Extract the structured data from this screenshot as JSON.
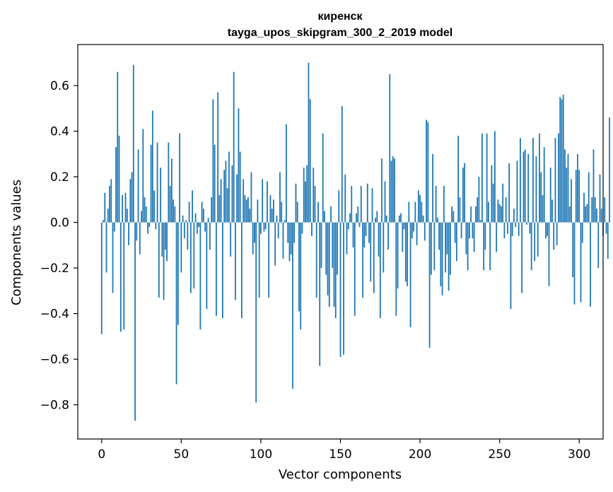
{
  "chart_data": {
    "type": "bar",
    "title_line1": "киренск",
    "title_line2": "tayga_upos_skipgram_300_2_2019 model",
    "xlabel": "Vector components",
    "ylabel": "Components values",
    "xlim": [
      -15,
      315
    ],
    "ylim": [
      -0.95,
      0.78
    ],
    "xticks": [
      0,
      50,
      100,
      150,
      200,
      250,
      300
    ],
    "xtick_labels": [
      "0",
      "50",
      "100",
      "150",
      "200",
      "250",
      "300"
    ],
    "yticks": [
      -0.8,
      -0.6,
      -0.4,
      -0.2,
      0.0,
      0.2,
      0.4,
      0.6
    ],
    "ytick_labels": [
      "−0.8",
      "−0.6",
      "−0.4",
      "−0.2",
      "0.0",
      "0.2",
      "0.4",
      "0.6"
    ],
    "bar_color": "#1f77b4",
    "values": [
      -0.49,
      0.01,
      0.13,
      -0.22,
      0.06,
      0.16,
      0.19,
      -0.31,
      -0.04,
      0.33,
      0.66,
      0.38,
      -0.48,
      0.12,
      -0.47,
      0.13,
      0.06,
      -0.1,
      0.19,
      0.22,
      0.69,
      -0.87,
      -0.08,
      0.32,
      -0.14,
      0.05,
      0.41,
      0.11,
      0.07,
      -0.05,
      -0.02,
      0.34,
      0.49,
      0.14,
      -0.03,
      0.35,
      -0.33,
      0.24,
      -0.15,
      -0.34,
      -0.12,
      -0.17,
      0.35,
      0.16,
      0.28,
      0.1,
      0.07,
      -0.71,
      -0.45,
      0.39,
      -0.22,
      0.03,
      -0.07,
      0.01,
      -0.12,
      0.09,
      -0.31,
      0.14,
      -0.29,
      0.04,
      -0.05,
      -0.02,
      -0.47,
      0.09,
      0.06,
      -0.04,
      -0.38,
      0.02,
      -0.12,
      0.11,
      0.54,
      0.34,
      -0.41,
      0.57,
      0.12,
      0.19,
      -0.42,
      0.23,
      0.27,
      0.15,
      0.31,
      -0.15,
      0.25,
      0.66,
      -0.34,
      0.21,
      0.5,
      0.31,
      -0.42,
      0.19,
      0.12,
      0.1,
      0.11,
      0.06,
      0.22,
      -0.14,
      -0.09,
      -0.79,
      0.1,
      -0.33,
      -0.05,
      0.19,
      -0.04,
      -0.03,
      0.18,
      -0.33,
      0.12,
      0.06,
      0.1,
      -0.19,
      0.03,
      -0.07,
      0.22,
      0.09,
      -0.16,
      0.01,
      0.43,
      -0.09,
      -0.17,
      -0.14,
      -0.73,
      -0.09,
      0.17,
      0.09,
      -0.39,
      -0.47,
      -0.05,
      0.24,
      0.18,
      0.25,
      0.7,
      0.54,
      -0.06,
      0.24,
      0.16,
      -0.33,
      0.09,
      -0.63,
      -0.2,
      0.39,
      0.05,
      -0.23,
      -0.32,
      -0.37,
      0.07,
      -0.2,
      -0.37,
      -0.42,
      -0.23,
      0.14,
      -0.59,
      0.51,
      -0.58,
      0.21,
      -0.14,
      -0.03,
      0.04,
      0.16,
      -0.11,
      -0.41,
      0.04,
      0.07,
      -0.02,
      0.16,
      -0.33,
      -0.11,
      -0.06,
      0.17,
      -0.09,
      -0.26,
      0.15,
      -0.31,
      0.02,
      0.05,
      -0.15,
      -0.42,
      0.28,
      -0.22,
      0.18,
      0.03,
      -0.12,
      0.65,
      0.27,
      0.29,
      0.28,
      -0.41,
      -0.29,
      0.03,
      0.04,
      -0.13,
      -0.03,
      -0.26,
      -0.28,
      0.09,
      -0.46,
      -0.07,
      -0.04,
      0.09,
      -0.1,
      0.14,
      0.12,
      0.09,
      0.03,
      -0.08,
      0.45,
      0.44,
      -0.55,
      -0.23,
      0.3,
      -0.21,
      0.16,
      0.02,
      -0.12,
      -0.28,
      -0.32,
      0.16,
      -0.22,
      -0.14,
      -0.3,
      -0.23,
      0.07,
      0.05,
      -0.09,
      -0.17,
      0.38,
      0.11,
      -0.07,
      0.24,
      0.26,
      -0.14,
      -0.21,
      -0.07,
      0.07,
      -0.07,
      -0.13,
      0.07,
      0.11,
      0.2,
      0.01,
      0.39,
      -0.21,
      -0.12,
      0.39,
      0.09,
      -0.21,
      0.25,
      0.17,
      0.4,
      -0.13,
      0.1,
      0.08,
      0.07,
      0.17,
      -0.07,
      0.11,
      -0.05,
      0.26,
      -0.38,
      -0.06,
      0.06,
      -0.02,
      0.27,
      -0.06,
      0.37,
      -0.31,
      0.31,
      0.32,
      -0.01,
      0.3,
      -0.05,
      -0.21,
      0.37,
      -0.17,
      0.29,
      -0.15,
      0.39,
      0.22,
      0.12,
      0.33,
      -0.07,
      -0.06,
      -0.28,
      0.24,
      0.1,
      -0.12,
      0.37,
      -0.1,
      0.39,
      0.55,
      0.54,
      0.56,
      0.32,
      0.24,
      0.3,
      0.07,
      0.19,
      -0.24,
      -0.36,
      0.23,
      0.3,
      0.23,
      -0.35,
      -0.09,
      0.13,
      0.07,
      0.08,
      0.22,
      -0.37,
      0.11,
      0.32,
      0.11,
      0.06,
      -0.2,
      0.21,
      0.06,
      -0.06,
      0.11,
      -0.05,
      -0.16,
      0.46
    ]
  }
}
